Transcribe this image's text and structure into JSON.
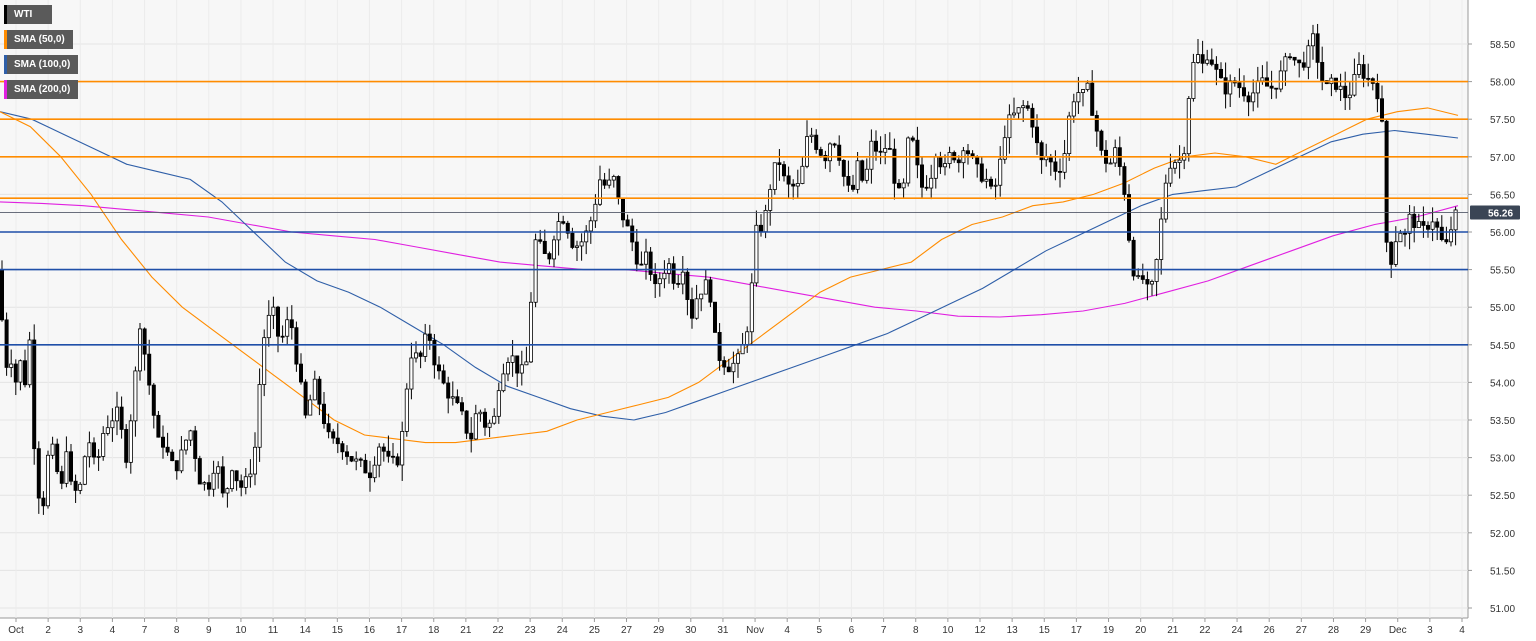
{
  "chart_data": {
    "type": "candlestick",
    "symbol": "WTI",
    "last_price": "56.26",
    "legend": [
      {
        "label": "WTI",
        "color": "#000000"
      },
      {
        "label": "SMA (50,0)",
        "color": "#ff8c00"
      },
      {
        "label": "SMA (100,0)",
        "color": "#2f5fa8"
      },
      {
        "label": "SMA (200,0)",
        "color": "#e020e0"
      }
    ],
    "ylim": [
      50.9,
      58.95
    ],
    "y_ticks": [
      "51.00",
      "51.50",
      "52.00",
      "52.50",
      "53.00",
      "53.50",
      "54.00",
      "54.50",
      "55.00",
      "55.50",
      "56.00",
      "56.50",
      "57.00",
      "57.50",
      "58.00",
      "58.50"
    ],
    "x_labels": [
      "Oct",
      "2",
      "3",
      "4",
      "7",
      "8",
      "9",
      "10",
      "11",
      "14",
      "15",
      "16",
      "17",
      "18",
      "21",
      "22",
      "23",
      "24",
      "25",
      "27",
      "29",
      "30",
      "31",
      "Nov",
      "4",
      "5",
      "6",
      "7",
      "8",
      "10",
      "12",
      "13",
      "15",
      "17",
      "19",
      "20",
      "21",
      "22",
      "24",
      "26",
      "27",
      "28",
      "29",
      "Dec",
      "3",
      "4"
    ],
    "horizontal_levels": [
      {
        "value": 58.0,
        "color": "#ff8c00"
      },
      {
        "value": 57.5,
        "color": "#ff8c00"
      },
      {
        "value": 57.0,
        "color": "#ff8c00"
      },
      {
        "value": 56.45,
        "color": "#ff8c00"
      },
      {
        "value": 56.0,
        "color": "#1f4fa8"
      },
      {
        "value": 55.5,
        "color": "#1f4fa8"
      },
      {
        "value": 54.5,
        "color": "#1f4fa8"
      }
    ],
    "current_level": 56.26,
    "sma50": [
      57.6,
      57.4,
      57.0,
      56.5,
      55.9,
      55.4,
      55.0,
      54.7,
      54.4,
      54.1,
      53.8,
      53.5,
      53.3,
      53.25,
      53.2,
      53.2,
      53.25,
      53.3,
      53.35,
      53.5,
      53.6,
      53.7,
      53.8,
      54.0,
      54.3,
      54.6,
      54.9,
      55.2,
      55.4,
      55.5,
      55.6,
      55.9,
      56.1,
      56.2,
      56.35,
      56.4,
      56.5,
      56.65,
      56.85,
      57.0,
      57.05,
      57.0,
      56.9,
      57.1,
      57.3,
      57.5,
      57.6,
      57.65,
      57.55
    ],
    "sma100": [
      57.6,
      57.5,
      57.3,
      57.1,
      56.9,
      56.8,
      56.7,
      56.4,
      56.0,
      55.6,
      55.35,
      55.2,
      55.0,
      54.75,
      54.5,
      54.2,
      53.95,
      53.8,
      53.65,
      53.55,
      53.5,
      53.6,
      53.75,
      53.9,
      54.05,
      54.2,
      54.35,
      54.5,
      54.65,
      54.85,
      55.05,
      55.25,
      55.5,
      55.75,
      55.95,
      56.15,
      56.35,
      56.5,
      56.55,
      56.6,
      56.8,
      57.0,
      57.2,
      57.3,
      57.35,
      57.3,
      57.25
    ],
    "sma200": [
      56.4,
      56.38,
      56.35,
      56.3,
      56.25,
      56.2,
      56.1,
      56.0,
      55.95,
      55.9,
      55.8,
      55.7,
      55.6,
      55.55,
      55.5,
      55.5,
      55.45,
      55.4,
      55.3,
      55.2,
      55.1,
      55.0,
      54.95,
      54.88,
      54.87,
      54.9,
      54.95,
      55.05,
      55.2,
      55.35,
      55.55,
      55.75,
      55.95,
      56.1,
      56.2,
      56.35
    ],
    "candles_note_hidden": ""
  }
}
